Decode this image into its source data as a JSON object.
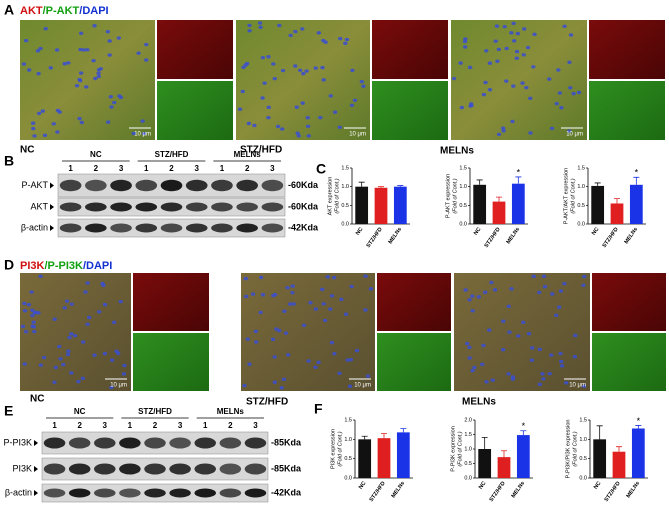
{
  "panel_labels": [
    "A",
    "B",
    "C",
    "D",
    "E",
    "F"
  ],
  "panel_a": {
    "title": [
      "AKT",
      "/P-AKT",
      "/DAPI"
    ],
    "groups": [
      "NC",
      "STZ/HFD",
      "MELNs"
    ],
    "scale_bar": "10 μm"
  },
  "panel_b": {
    "groups": [
      "NC",
      "STZ/HFD",
      "MELNs"
    ],
    "lanes": [
      "1",
      "2",
      "3"
    ],
    "rows": [
      {
        "label": "P-AKT",
        "weight": "-60Kda"
      },
      {
        "label": "AKT",
        "weight": "-60Kda"
      },
      {
        "label": "β-actin",
        "weight": "-42Kda"
      }
    ]
  },
  "panel_d": {
    "title": [
      "PI3K",
      "/P-PI3K",
      "/DAPI"
    ],
    "groups": [
      "NC",
      "STZ/HFD",
      "MELNs"
    ],
    "scale_bar": "10 μm"
  },
  "panel_e": {
    "groups": [
      "NC",
      "STZ/HFD",
      "MELNs"
    ],
    "lanes": [
      "1",
      "2",
      "3"
    ],
    "rows": [
      {
        "label": "P-PI3K",
        "weight": "-85Kda"
      },
      {
        "label": "PI3K",
        "weight": "-85Kda"
      },
      {
        "label": "β-actin",
        "weight": "-42Kda"
      }
    ]
  },
  "chart_data": [
    {
      "type": "bar",
      "y_label": "AKT expression",
      "y_unit": "(Fold of Cont.)",
      "categories": [
        "NC",
        "STZ/HFD",
        "MELNs"
      ],
      "values": [
        1.0,
        0.97,
        1.0
      ],
      "errors": [
        0.12,
        0.03,
        0.03
      ],
      "significance": [
        null,
        null,
        null
      ],
      "colors": [
        "#111111",
        "#e02020",
        "#1a33e6"
      ],
      "ylim": [
        0,
        1.5
      ],
      "yticks": [
        {
          "value": 0,
          "label": "0.0"
        },
        0.5,
        {
          "value": 1,
          "label": "1.0"
        },
        1.5
      ]
    },
    {
      "type": "bar",
      "y_label": "P-AKT expression",
      "y_unit": "(Fold of Cont.)",
      "categories": [
        "NC",
        "STZ/HFD",
        "MELNs"
      ],
      "values": [
        1.05,
        0.6,
        1.08
      ],
      "errors": [
        0.13,
        0.12,
        0.18
      ],
      "significance": [
        null,
        null,
        "*"
      ],
      "colors": [
        "#111111",
        "#e02020",
        "#1a33e6"
      ],
      "ylim": [
        0,
        1.5
      ],
      "yticks": [
        {
          "value": 0,
          "label": "0.0"
        },
        0.5,
        {
          "value": 1,
          "label": "1.0"
        },
        1.5
      ]
    },
    {
      "type": "bar",
      "y_label": "P-AKT/AKT expression",
      "y_unit": "(Fold of Cont.)",
      "categories": [
        "NC",
        "STZ/HFD",
        "MELNs"
      ],
      "values": [
        1.02,
        0.55,
        1.05
      ],
      "errors": [
        0.08,
        0.13,
        0.2
      ],
      "significance": [
        null,
        null,
        "*"
      ],
      "colors": [
        "#111111",
        "#e02020",
        "#1a33e6"
      ],
      "ylim": [
        0,
        1.5
      ],
      "yticks": [
        {
          "value": 0,
          "label": "0.0"
        },
        0.5,
        {
          "value": 1,
          "label": "1.0"
        },
        1.5
      ]
    },
    {
      "type": "bar",
      "y_label": "PI3K expression",
      "y_unit": "(Fold of Cont.)",
      "categories": [
        "NC",
        "STZ/HFD",
        "MELNs"
      ],
      "values": [
        1.0,
        1.03,
        1.18
      ],
      "errors": [
        0.08,
        0.12,
        0.1
      ],
      "significance": [
        null,
        null,
        null
      ],
      "colors": [
        "#111111",
        "#e02020",
        "#1a33e6"
      ],
      "ylim": [
        0,
        1.5
      ],
      "yticks": [
        {
          "value": 0,
          "label": "0.0"
        },
        0.5,
        {
          "value": 1,
          "label": "1.0"
        },
        1.5
      ]
    },
    {
      "type": "bar",
      "y_label": "P-PI3K expression",
      "y_unit": "(Fold of Cont.)",
      "categories": [
        "NC",
        "STZ/HFD",
        "MELNs"
      ],
      "values": [
        1.0,
        0.72,
        1.48
      ],
      "errors": [
        0.4,
        0.22,
        0.15
      ],
      "significance": [
        null,
        null,
        "*"
      ],
      "colors": [
        "#111111",
        "#e02020",
        "#1a33e6"
      ],
      "ylim": [
        0,
        2
      ],
      "yticks": [
        {
          "value": 0,
          "label": "0.0"
        },
        0.5,
        {
          "value": 1,
          "label": "1.0"
        },
        1.5,
        {
          "value": 2,
          "label": "2.0"
        }
      ]
    },
    {
      "type": "bar",
      "y_label": "P-PI3K/PI3K expression",
      "y_unit": "(Fold of Cont.)",
      "categories": [
        "NC",
        "STZ/HFD",
        "MELNs"
      ],
      "values": [
        1.0,
        0.68,
        1.28
      ],
      "errors": [
        0.35,
        0.13,
        0.08
      ],
      "significance": [
        null,
        null,
        "*"
      ],
      "colors": [
        "#111111",
        "#e02020",
        "#1a33e6"
      ],
      "ylim": [
        0,
        1.5
      ],
      "yticks": [
        {
          "value": 0,
          "label": "0.0"
        },
        0.5,
        {
          "value": 1,
          "label": "1.0"
        },
        1.5
      ]
    }
  ]
}
